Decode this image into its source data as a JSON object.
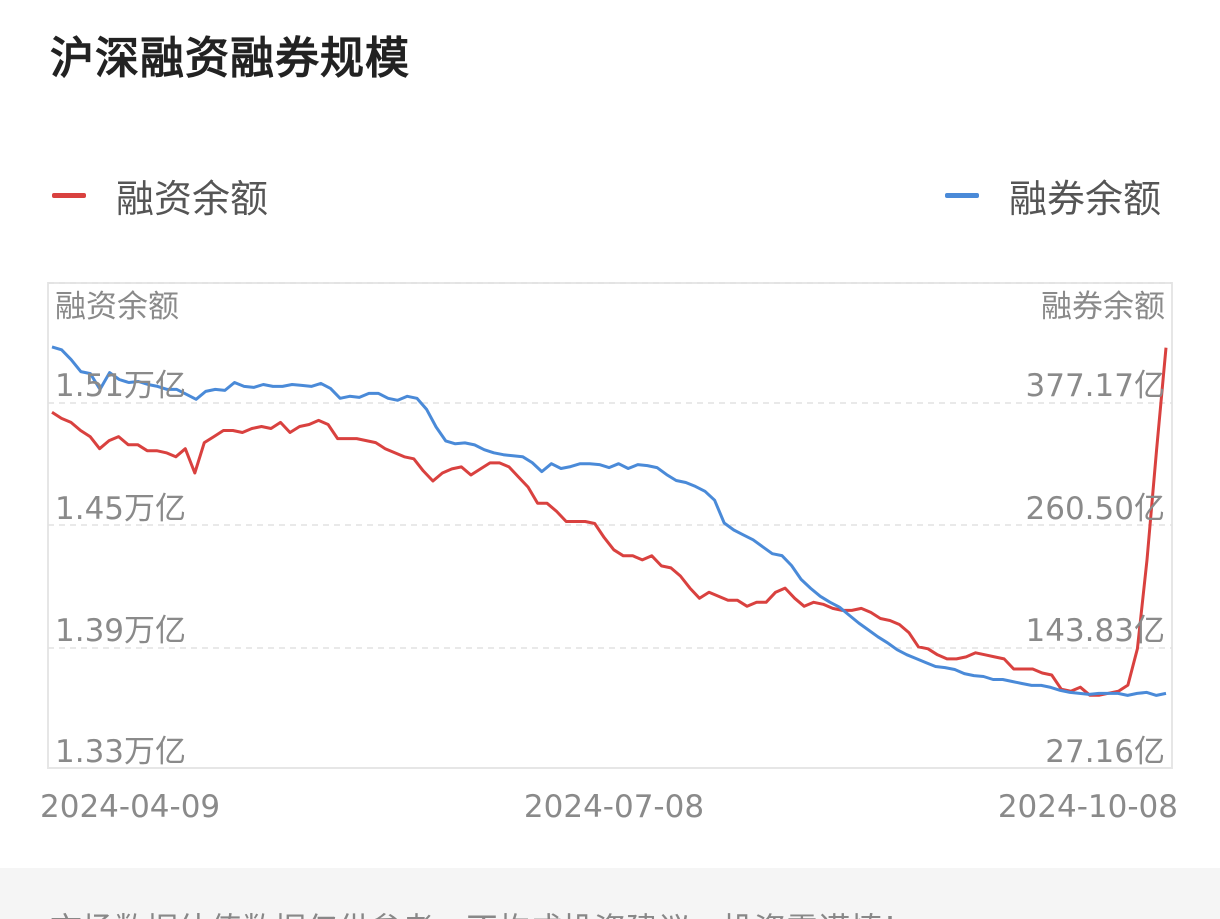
{
  "title": "沪深融资融券规模",
  "legend": [
    {
      "label": "融资余额",
      "color": "#d9413f"
    },
    {
      "label": "融券余额",
      "color": "#4a8ad8"
    }
  ],
  "footer_text": "市场数据估值数据仅供参考，不构成投资建议，投资需谨慎！",
  "chart_data": {
    "type": "line",
    "title": "沪深融资融券规模",
    "grid": true,
    "legend_placement": "top",
    "x_tick_labels": [
      "2024-04-09",
      "2024-07-08",
      "2024-10-08"
    ],
    "xlim": [
      "2024-04-09",
      "2024-10-08"
    ],
    "left_axis": {
      "label": "融资余额",
      "ticks": [
        "1.51万亿",
        "1.45万亿",
        "1.39万亿",
        "1.33万亿"
      ],
      "tick_values": [
        1.51,
        1.45,
        1.39,
        1.33
      ],
      "ylim": [
        1.33,
        1.57
      ],
      "unit": "万亿"
    },
    "right_axis": {
      "label": "融券余额",
      "ticks": [
        "377.17亿",
        "260.50亿",
        "143.83亿",
        "27.16亿"
      ],
      "tick_values": [
        377.17,
        260.5,
        143.83,
        27.16
      ],
      "ylim": [
        27.16,
        493.84
      ],
      "unit": "亿"
    },
    "series": [
      {
        "name": "融资余额",
        "axis": "left",
        "color": "#d9413f",
        "values": [
          1.506,
          1.503,
          1.501,
          1.497,
          1.494,
          1.488,
          1.492,
          1.494,
          1.49,
          1.49,
          1.487,
          1.487,
          1.486,
          1.484,
          1.488,
          1.476,
          1.491,
          1.494,
          1.497,
          1.497,
          1.496,
          1.498,
          1.499,
          1.498,
          1.501,
          1.496,
          1.499,
          1.5,
          1.502,
          1.5,
          1.493,
          1.493,
          1.493,
          1.492,
          1.491,
          1.488,
          1.486,
          1.484,
          1.483,
          1.477,
          1.472,
          1.476,
          1.478,
          1.479,
          1.475,
          1.478,
          1.481,
          1.481,
          1.479,
          1.474,
          1.469,
          1.461,
          1.461,
          1.457,
          1.452,
          1.452,
          1.452,
          1.451,
          1.444,
          1.438,
          1.435,
          1.435,
          1.433,
          1.435,
          1.43,
          1.429,
          1.425,
          1.419,
          1.414,
          1.417,
          1.415,
          1.413,
          1.413,
          1.41,
          1.412,
          1.412,
          1.417,
          1.419,
          1.414,
          1.41,
          1.412,
          1.411,
          1.409,
          1.408,
          1.408,
          1.409,
          1.407,
          1.404,
          1.403,
          1.401,
          1.397,
          1.39,
          1.389,
          1.386,
          1.384,
          1.384,
          1.385,
          1.387,
          1.386,
          1.385,
          1.384,
          1.379,
          1.379,
          1.379,
          1.377,
          1.376,
          1.369,
          1.368,
          1.37,
          1.366,
          1.366,
          1.367,
          1.368,
          1.371,
          1.389,
          1.433,
          1.487,
          1.538
        ]
      },
      {
        "name": "融券余额",
        "axis": "right",
        "color": "#4a8ad8",
        "values": [
          432.4,
          429.6,
          420.0,
          408.6,
          406.7,
          391.5,
          407.6,
          401.0,
          398.1,
          399.1,
          396.2,
          394.3,
          391.5,
          391.5,
          386.7,
          381.9,
          389.5,
          391.5,
          390.5,
          398.1,
          394.3,
          393.4,
          396.2,
          394.3,
          394.3,
          396.2,
          395.3,
          394.3,
          397.2,
          392.4,
          382.9,
          384.8,
          383.8,
          387.6,
          387.6,
          382.9,
          381.0,
          384.8,
          382.9,
          372.4,
          355.3,
          341.9,
          339.1,
          340.0,
          338.1,
          333.4,
          330.5,
          328.6,
          327.6,
          326.7,
          321.0,
          312.4,
          320.0,
          315.3,
          317.2,
          320.0,
          320.0,
          319.1,
          316.2,
          320.0,
          315.3,
          319.1,
          318.1,
          316.2,
          309.5,
          303.8,
          301.9,
          298.1,
          293.4,
          284.8,
          262.9,
          256.2,
          251.5,
          246.7,
          240.0,
          233.4,
          231.5,
          222.0,
          208.6,
          200.0,
          192.4,
          186.7,
          181.9,
          174.3,
          166.7,
          160.0,
          153.4,
          147.6,
          141.0,
          136.2,
          132.4,
          128.6,
          124.8,
          123.8,
          121.9,
          118.0,
          116.1,
          115.2,
          112.3,
          112.3,
          110.4,
          108.5,
          106.6,
          106.6,
          104.7,
          101.8,
          99.9,
          98.9,
          98.0,
          98.9,
          98.9,
          98.9,
          97.0,
          98.9,
          99.9,
          97.0,
          98.9
        ]
      }
    ]
  }
}
